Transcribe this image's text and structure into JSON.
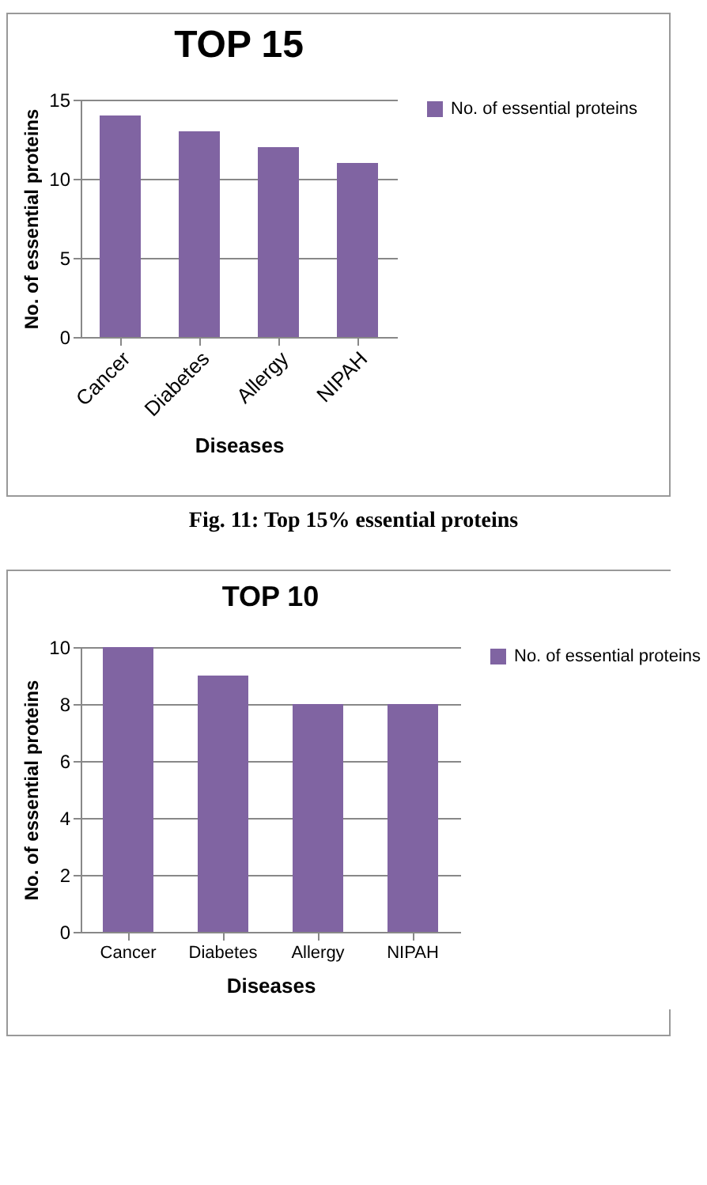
{
  "chart_data": [
    {
      "type": "bar",
      "title": "TOP 15",
      "xlabel": "Diseases",
      "ylabel": "No. of essential proteins",
      "categories": [
        "Cancer",
        "Diabetes",
        "Allergy",
        "NIPAH"
      ],
      "series": [
        {
          "name": "No. of essential proteins",
          "color": "#8064a2",
          "values": [
            14,
            13,
            12,
            11
          ]
        }
      ],
      "ylim": [
        0,
        15
      ],
      "yticks": [
        0,
        5,
        10,
        15
      ],
      "grid": "y",
      "legend": "right",
      "annotations": [
        "Fig. 11: Top 15% essential proteins"
      ]
    },
    {
      "type": "bar",
      "title": "TOP 10",
      "xlabel": "Diseases",
      "ylabel": "No. of essential proteins",
      "categories": [
        "Cancer",
        "Diabetes",
        "Allergy",
        "NIPAH"
      ],
      "series": [
        {
          "name": "No. of essential proteins",
          "color": "#8064a2",
          "values": [
            10,
            9,
            8,
            8
          ]
        }
      ],
      "ylim": [
        0,
        10
      ],
      "yticks": [
        0,
        2,
        4,
        6,
        8,
        10
      ],
      "grid": "y",
      "legend": "right"
    }
  ]
}
